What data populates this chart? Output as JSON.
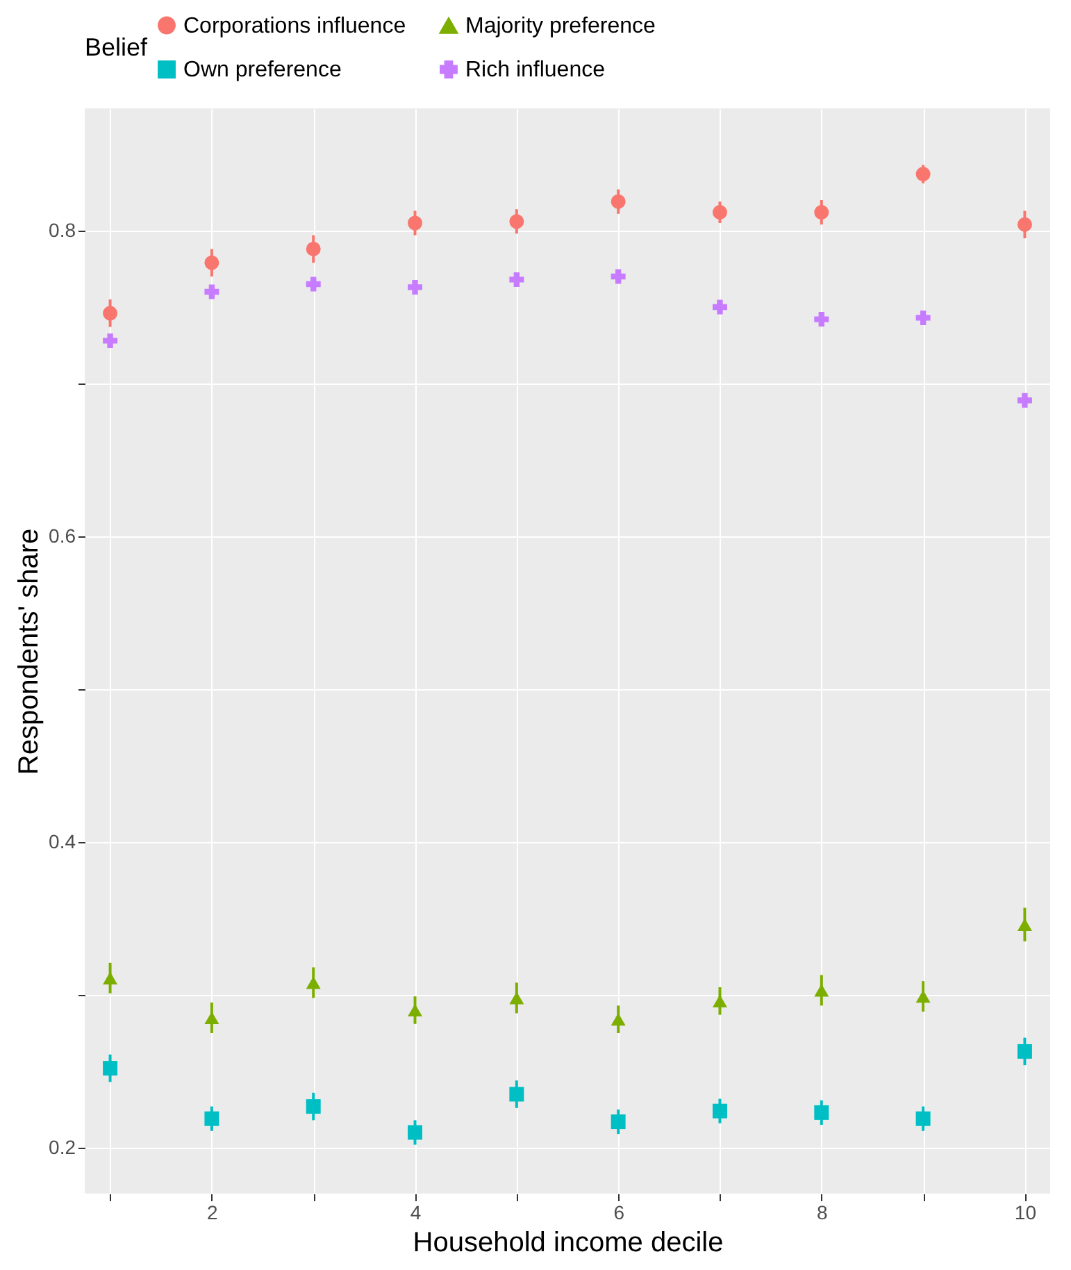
{
  "chart_data": {
    "type": "scatter",
    "xlabel": "Household income decile",
    "ylabel": "Respondents' share",
    "legend_title": "Belief",
    "legend": "top",
    "grid": true,
    "x": [
      1,
      2,
      3,
      4,
      5,
      6,
      7,
      8,
      9,
      10
    ],
    "xlim": [
      0.75,
      10.25
    ],
    "ylim": [
      0.17,
      0.88
    ],
    "xticks": [
      {
        "value": 1,
        "label": null
      },
      2,
      {
        "value": 3,
        "label": null
      },
      4,
      {
        "value": 5,
        "label": null
      },
      6,
      {
        "value": 7,
        "label": null
      },
      8,
      {
        "value": 9,
        "label": null
      },
      10
    ],
    "yticks": [
      0.2,
      {
        "value": 0.3,
        "label": null
      },
      0.4,
      {
        "value": 0.5,
        "label": null
      },
      0.6,
      {
        "value": 0.7,
        "label": null
      },
      0.8
    ],
    "series": [
      {
        "name": "Corporations influence",
        "color": "#f8766d",
        "marker": "circle",
        "values": [
          0.746,
          0.779,
          0.788,
          0.805,
          0.806,
          0.819,
          0.812,
          0.812,
          0.837,
          0.804
        ],
        "errors": [
          0.009,
          0.009,
          0.009,
          0.008,
          0.008,
          0.008,
          0.007,
          0.008,
          0.006,
          0.009
        ]
      },
      {
        "name": "Majority preference",
        "color": "#7cae00",
        "marker": "triangle",
        "values": [
          0.311,
          0.285,
          0.308,
          0.29,
          0.298,
          0.284,
          0.296,
          0.303,
          0.299,
          0.346
        ],
        "errors": [
          0.01,
          0.01,
          0.01,
          0.009,
          0.01,
          0.009,
          0.009,
          0.01,
          0.01,
          0.011
        ]
      },
      {
        "name": "Own preference",
        "color": "#00bfc4",
        "marker": "square",
        "values": [
          0.252,
          0.219,
          0.227,
          0.21,
          0.235,
          0.217,
          0.224,
          0.223,
          0.219,
          0.263
        ],
        "errors": [
          0.009,
          0.008,
          0.009,
          0.008,
          0.009,
          0.008,
          0.008,
          0.008,
          0.008,
          0.009
        ]
      },
      {
        "name": "Rich influence",
        "color": "#c77cff",
        "marker": "cross",
        "values": [
          0.728,
          0.76,
          0.765,
          0.763,
          0.768,
          0.77,
          0.75,
          0.742,
          0.743,
          0.689
        ]
      }
    ]
  }
}
